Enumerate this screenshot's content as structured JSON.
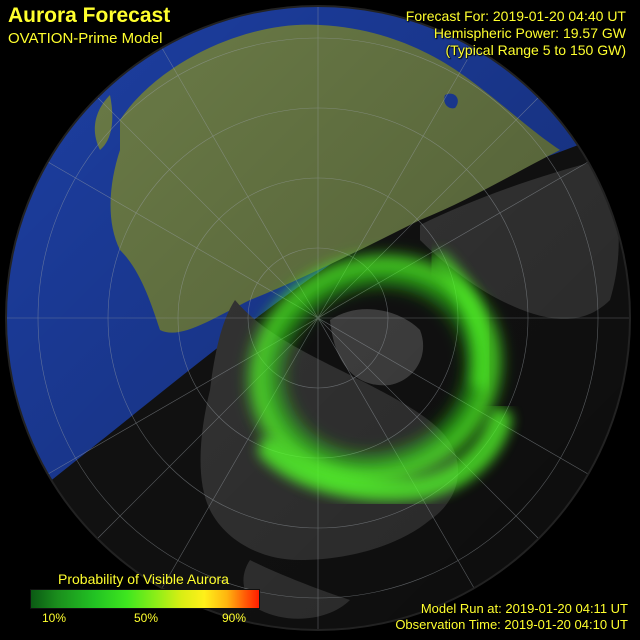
{
  "header": {
    "title": "Aurora Forecast",
    "subtitle": "OVATION-Prime Model"
  },
  "forecast": {
    "time_line": "Forecast For: 2019-01-20 04:40 UT",
    "power_line": "Hemispheric Power: 19.57 GW",
    "range_line": "(Typical Range 5 to 150 GW)"
  },
  "footer": {
    "model_run": "Model Run at: 2019-01-20 04:11 UT",
    "observation": "Observation Time: 2019-01-20 04:10 UT"
  },
  "legend": {
    "title": "Probability of Visible Aurora",
    "ticks": [
      "10%",
      "50%",
      "90%"
    ]
  },
  "colors": {
    "text": "#ffff2e",
    "ocean": "#1d3fa3",
    "day_land": "#6e7f49",
    "night_land": "#3a3a3a",
    "night": "#121212",
    "aurora": "#39ff1a"
  }
}
